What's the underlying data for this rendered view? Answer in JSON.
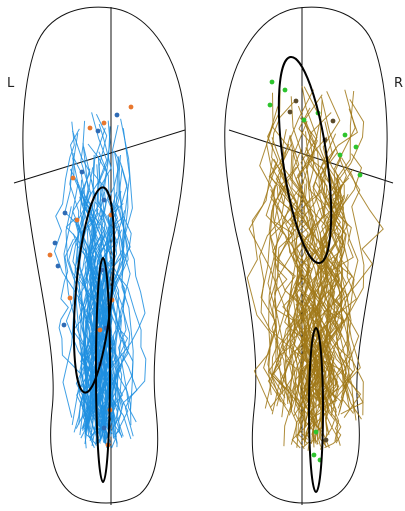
{
  "labels": {
    "left": "L",
    "right": "R"
  },
  "colors": {
    "outline": "#111111",
    "left_traces": "#1e8fe0",
    "left_points_a": "#e8772e",
    "left_points_b": "#2f6bb5",
    "right_traces": "#a07818",
    "right_points_a": "#2dc42d",
    "right_points_b": "#5a4a2a",
    "ellipse": "#000000"
  },
  "feet": [
    {
      "side": "left",
      "ellipses": [
        {
          "role": "large",
          "angle_deg": 5
        },
        {
          "role": "small",
          "angle_deg": 0
        }
      ]
    },
    {
      "side": "right",
      "ellipses": [
        {
          "role": "large",
          "angle_deg": -8
        },
        {
          "role": "small",
          "angle_deg": 0
        }
      ]
    }
  ]
}
